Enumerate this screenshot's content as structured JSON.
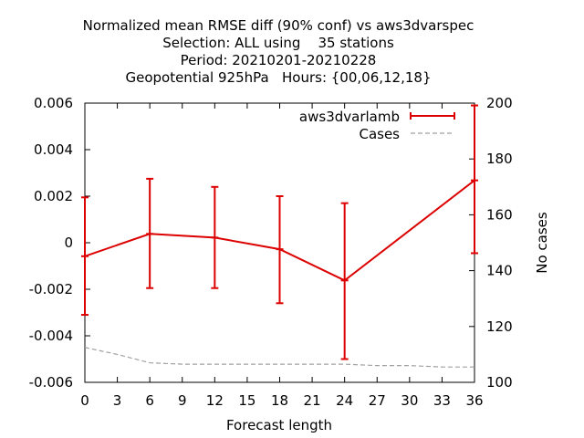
{
  "chart_data": {
    "type": "line",
    "title_lines": [
      "Normalized mean RMSE diff (90% conf) vs aws3dvarspec",
      "Selection: ALL using    35 stations",
      "Period: 20210201-20210228",
      "Geopotential 925hPa   Hours: {00,06,12,18}"
    ],
    "xlabel": "Forecast length",
    "ylabel": "",
    "y2label": "No cases",
    "x_ticks": [
      "0",
      "3",
      "6",
      "9",
      "12",
      "15",
      "18",
      "21",
      "24",
      "27",
      "30",
      "33",
      "36"
    ],
    "y_ticks": [
      "0.006",
      "0.004",
      "0.002",
      "0",
      "-0.002",
      "-0.004",
      "-0.006"
    ],
    "y_tick_values": [
      0.006,
      0.004,
      0.002,
      0,
      -0.002,
      -0.004,
      -0.006
    ],
    "y2_ticks": [
      "200",
      "180",
      "160",
      "140",
      "120",
      "100"
    ],
    "y2_tick_values": [
      200,
      180,
      160,
      140,
      120,
      100
    ],
    "xlim": [
      0,
      36
    ],
    "ylim": [
      -0.006,
      0.006
    ],
    "y2lim": [
      100,
      200
    ],
    "legend_position": "top-right",
    "series": [
      {
        "name": "aws3dvarlamb",
        "color": "#dd0000",
        "style": "line with error bars",
        "x": [
          0,
          6,
          12,
          18,
          24,
          36
        ],
        "y": [
          -0.00058,
          0.00038,
          0.00022,
          -0.00028,
          -0.00162,
          0.00268
        ],
        "err_low": [
          -0.0031,
          -0.00195,
          -0.00195,
          -0.0026,
          -0.005,
          -0.00045
        ],
        "err_high": [
          0.00195,
          0.00275,
          0.0024,
          0.002,
          0.0017,
          0.0059
        ]
      },
      {
        "name": "Cases",
        "color": "#a0a0a0",
        "style": "dashed",
        "axis": "right",
        "x": [
          0,
          3,
          6,
          9,
          12,
          15,
          18,
          21,
          24,
          27,
          30,
          33,
          36
        ],
        "y": [
          112.5,
          110,
          107,
          106.5,
          106.5,
          106.5,
          106.5,
          106.5,
          106.5,
          106,
          106,
          105.5,
          105.5
        ]
      }
    ]
  }
}
